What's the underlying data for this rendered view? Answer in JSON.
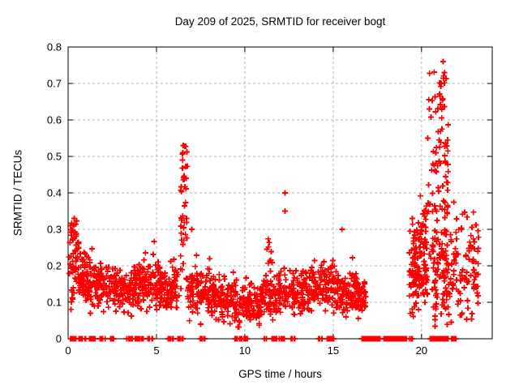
{
  "chart_data": {
    "type": "scatter",
    "title": "Day 209 of 2025, SRMTID for receiver bogt",
    "xlabel": "GPS time / hours",
    "ylabel": "SRMTID / TECUs",
    "series_name": "SRMTID",
    "xlim": [
      0,
      24
    ],
    "ylim": [
      0,
      0.8
    ],
    "xticks": {
      "values": [
        0,
        5,
        10,
        15,
        20
      ],
      "labels": [
        "0",
        "5",
        "10",
        "15",
        "20"
      ]
    },
    "yticks": {
      "values": [
        0,
        0.1,
        0.2,
        0.3,
        0.4,
        0.5,
        0.6,
        0.7,
        0.8
      ],
      "labels": [
        "0",
        "0.1",
        "0.2",
        "0.3",
        "0.4",
        "0.5",
        "0.6",
        "0.7",
        "0.8"
      ]
    },
    "grid": true,
    "legend_position": "none",
    "marker": {
      "shape": "plus",
      "color": "#ff0000",
      "size": 7
    },
    "colors": {
      "frame": "#000000",
      "grid": "#b0b0b0",
      "background": "#ffffff",
      "text": "#000000"
    },
    "seed": 209,
    "data_gaps_hours": [
      [
        16.85,
        19.3
      ]
    ],
    "notable_points": [
      [
        6.52,
        0.53
      ],
      [
        6.48,
        0.49
      ],
      [
        12.27,
        0.4
      ],
      [
        12.27,
        0.35
      ],
      [
        21.22,
        0.76
      ],
      [
        21.3,
        0.73
      ],
      [
        21.12,
        0.7
      ],
      [
        20.45,
        0.63
      ],
      [
        0.35,
        0.33
      ],
      [
        15.5,
        0.3
      ],
      [
        7.0,
        0.3
      ]
    ],
    "clusters": [
      {
        "t": [
          0.05,
          0.62
        ],
        "n": 55,
        "y": [
          0.2,
          0.055
        ],
        "clip": [
          0.08,
          0.335
        ]
      },
      {
        "t": [
          0.15,
          0.5
        ],
        "n": 12,
        "y": [
          0.295,
          0.02
        ],
        "clip": [
          0.26,
          0.335
        ]
      },
      {
        "t": [
          0.62,
          1.3
        ],
        "n": 70,
        "y": [
          0.165,
          0.04
        ],
        "clip": [
          0.07,
          0.28
        ]
      },
      {
        "t": [
          1.3,
          2.3
        ],
        "n": 85,
        "y": [
          0.15,
          0.035
        ],
        "clip": [
          0.06,
          0.27
        ]
      },
      {
        "t": [
          2.3,
          4.2
        ],
        "n": 150,
        "y": [
          0.145,
          0.03
        ],
        "clip": [
          0.06,
          0.24
        ]
      },
      {
        "t": [
          4.2,
          5.2
        ],
        "n": 85,
        "y": [
          0.15,
          0.035
        ],
        "clip": [
          0.06,
          0.27
        ]
      },
      {
        "t": [
          5.2,
          6.3
        ],
        "n": 90,
        "y": [
          0.135,
          0.03
        ],
        "clip": [
          0.05,
          0.22
        ]
      },
      {
        "t": [
          6.35,
          6.75
        ],
        "n": 32,
        "y": [
          0.27,
          0.1
        ],
        "clip": [
          0.13,
          0.53
        ]
      },
      {
        "t": [
          6.4,
          6.7
        ],
        "n": 9,
        "y": [
          0.46,
          0.05
        ],
        "clip": [
          0.38,
          0.53
        ]
      },
      {
        "t": [
          6.75,
          8.2
        ],
        "n": 110,
        "y": [
          0.13,
          0.035
        ],
        "clip": [
          0.04,
          0.3
        ]
      },
      {
        "t": [
          8.2,
          9.6
        ],
        "n": 110,
        "y": [
          0.115,
          0.03
        ],
        "clip": [
          0.04,
          0.21
        ]
      },
      {
        "t": [
          9.6,
          10.9
        ],
        "n": 105,
        "y": [
          0.095,
          0.028
        ],
        "clip": [
          0.03,
          0.18
        ]
      },
      {
        "t": [
          10.9,
          12.1
        ],
        "n": 95,
        "y": [
          0.12,
          0.032
        ],
        "clip": [
          0.04,
          0.22
        ]
      },
      {
        "t": [
          11.2,
          11.5
        ],
        "n": 8,
        "y": [
          0.24,
          0.03
        ],
        "clip": [
          0.19,
          0.3
        ]
      },
      {
        "t": [
          12.1,
          13.6
        ],
        "n": 110,
        "y": [
          0.13,
          0.03
        ],
        "clip": [
          0.05,
          0.22
        ]
      },
      {
        "t": [
          13.6,
          15.1
        ],
        "n": 110,
        "y": [
          0.14,
          0.035
        ],
        "clip": [
          0.05,
          0.29
        ]
      },
      {
        "t": [
          15.1,
          16.4
        ],
        "n": 100,
        "y": [
          0.13,
          0.035
        ],
        "clip": [
          0.05,
          0.3
        ]
      },
      {
        "t": [
          16.4,
          16.85
        ],
        "n": 40,
        "y": [
          0.11,
          0.025
        ],
        "clip": [
          0.05,
          0.18
        ]
      },
      {
        "t": [
          19.3,
          20.35
        ],
        "n": 120,
        "y": [
          0.19,
          0.06
        ],
        "clip": [
          0.06,
          0.38
        ]
      },
      {
        "t": [
          19.9,
          20.35
        ],
        "n": 22,
        "y": [
          0.3,
          0.05
        ],
        "clip": [
          0.2,
          0.42
        ]
      },
      {
        "t": [
          20.35,
          21.55
        ],
        "n": 80,
        "y": [
          0.45,
          0.12
        ],
        "clip": [
          0.22,
          0.74
        ]
      },
      {
        "t": [
          21.0,
          21.45
        ],
        "n": 13,
        "y": [
          0.68,
          0.045
        ],
        "clip": [
          0.6,
          0.765
        ]
      },
      {
        "t": [
          20.6,
          22.2
        ],
        "n": 120,
        "y": [
          0.18,
          0.07
        ],
        "clip": [
          0.03,
          0.38
        ]
      },
      {
        "t": [
          22.2,
          23.25
        ],
        "n": 65,
        "y": [
          0.18,
          0.07
        ],
        "clip": [
          0.04,
          0.37
        ]
      }
    ],
    "zero_value_runs": [
      {
        "t": [
          0.12,
          0.45
        ],
        "n": 14
      },
      {
        "t": [
          0.6,
          1.0
        ],
        "n": 12
      },
      {
        "t": [
          1.2,
          1.55
        ],
        "n": 10
      },
      {
        "t": [
          1.8,
          2.1
        ],
        "n": 8
      },
      {
        "t": [
          2.4,
          2.65
        ],
        "n": 6
      },
      {
        "t": [
          3.3,
          3.65
        ],
        "n": 9
      },
      {
        "t": [
          3.8,
          4.35
        ],
        "n": 18
      },
      {
        "t": [
          4.5,
          4.8
        ],
        "n": 8
      },
      {
        "t": [
          5.6,
          6.0
        ],
        "n": 9
      },
      {
        "t": [
          6.2,
          6.5
        ],
        "n": 7
      },
      {
        "t": [
          7.4,
          7.75
        ],
        "n": 8
      },
      {
        "t": [
          9.4,
          10.15
        ],
        "n": 20
      },
      {
        "t": [
          11.1,
          11.25
        ],
        "n": 4
      },
      {
        "t": [
          11.5,
          12.25
        ],
        "n": 16
      },
      {
        "t": [
          12.6,
          12.85
        ],
        "n": 6
      },
      {
        "t": [
          14.15,
          14.4
        ],
        "n": 6
      },
      {
        "t": [
          14.6,
          15.05
        ],
        "n": 10
      },
      {
        "t": [
          16.6,
          17.65
        ],
        "n": 70
      },
      {
        "t": [
          17.85,
          19.15
        ],
        "n": 80
      },
      {
        "t": [
          19.3,
          19.55
        ],
        "n": 10
      },
      {
        "t": [
          20.4,
          20.95
        ],
        "n": 28
      },
      {
        "t": [
          21.0,
          21.55
        ],
        "n": 30
      },
      {
        "t": [
          21.6,
          21.95
        ],
        "n": 10
      }
    ]
  }
}
